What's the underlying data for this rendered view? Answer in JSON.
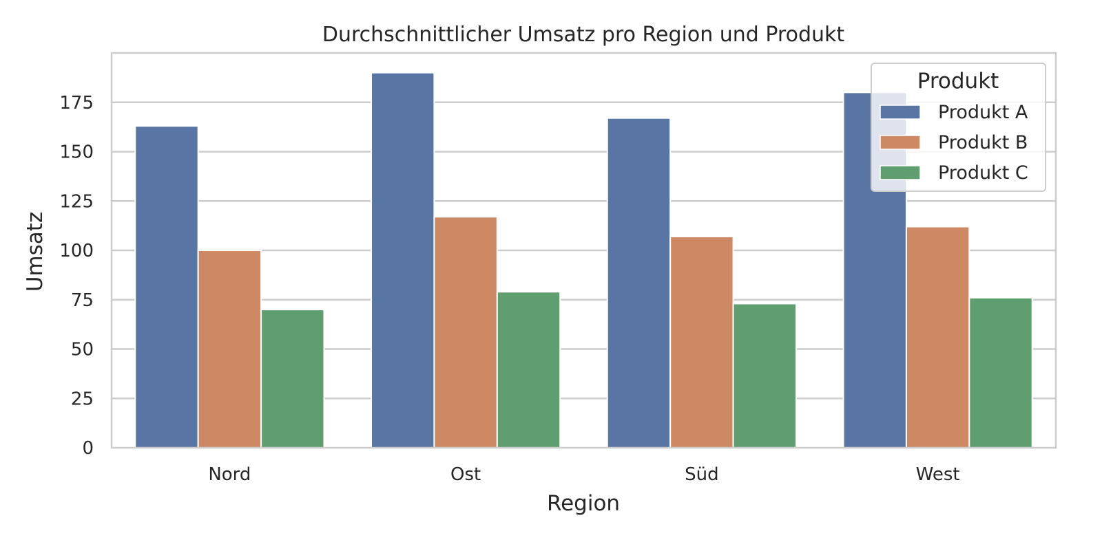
{
  "chart_data": {
    "type": "bar",
    "title": "Durchschnittlicher Umsatz pro Region und Produkt",
    "xlabel": "Region",
    "ylabel": "Umsatz",
    "categories": [
      "Nord",
      "Ost",
      "Süd",
      "West"
    ],
    "series": [
      {
        "name": "Produkt A",
        "color": "#5975a4",
        "values": [
          163,
          190,
          167,
          180
        ]
      },
      {
        "name": "Produkt B",
        "color": "#cc8963",
        "values": [
          100,
          117,
          107,
          112
        ]
      },
      {
        "name": "Produkt C",
        "color": "#5f9e6e",
        "values": [
          70,
          79,
          73,
          76
        ]
      }
    ],
    "ylim": [
      0,
      200
    ],
    "yticks": [
      0,
      25,
      50,
      75,
      100,
      125,
      150,
      175
    ],
    "grid": true,
    "legend": {
      "title": "Produkt",
      "placement": "top-right"
    }
  }
}
